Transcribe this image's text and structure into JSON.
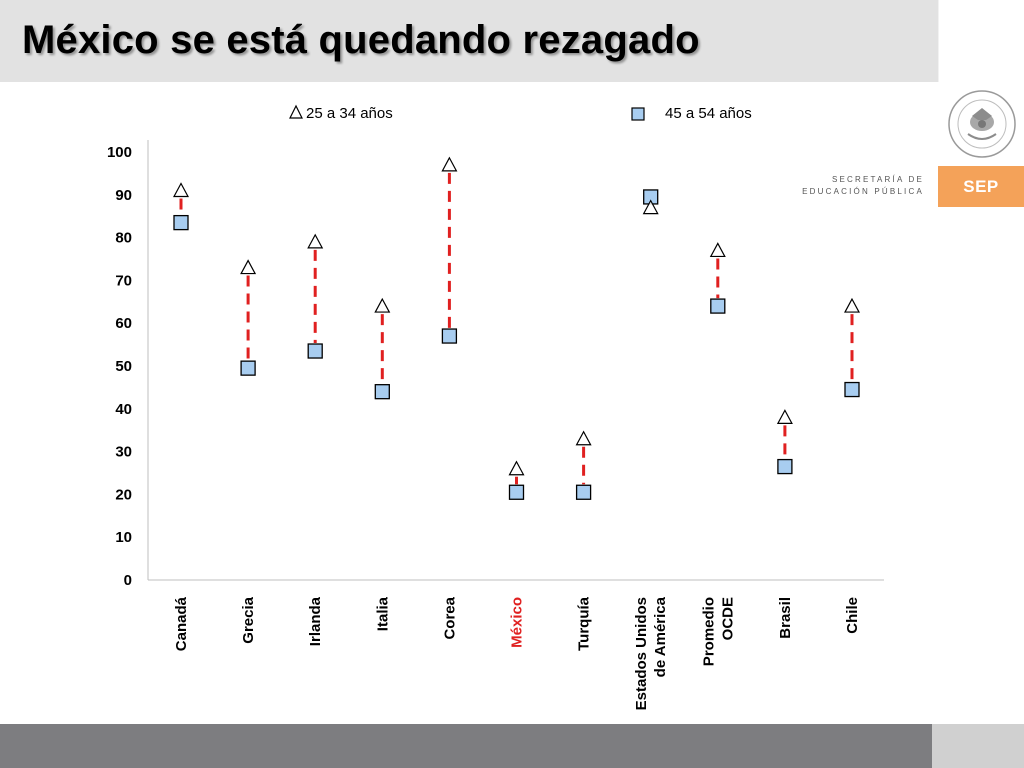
{
  "page": {
    "title": "México se está quedando rezagado",
    "logo_text_line1": "SECRETARÍA DE",
    "logo_text_line2": "EDUCACIÓN PÚBLICA",
    "logo_badge": "SEP",
    "seal_text": "ESTADOS UNIDOS MEXICANOS"
  },
  "colors": {
    "marker_fill": "#a8cdf0",
    "dash_line": "#e02020",
    "highlight_label": "#e02020",
    "axis": "#bfbfbf"
  },
  "chart_data": {
    "type": "scatter",
    "title": "",
    "xlabel": "",
    "ylabel": "",
    "ylim": [
      0,
      100
    ],
    "yticks": [
      0,
      10,
      20,
      30,
      40,
      50,
      60,
      70,
      80,
      90,
      100
    ],
    "legend_position": "top",
    "categories": [
      [
        "Canadá"
      ],
      [
        "Grecia"
      ],
      [
        "Irlanda"
      ],
      [
        "Italia"
      ],
      [
        "Corea"
      ],
      [
        "México"
      ],
      [
        "Turquía"
      ],
      [
        "Estados Unidos",
        "de América"
      ],
      [
        "Promedio",
        "OCDE"
      ],
      [
        "Brasil"
      ],
      [
        "Chile"
      ]
    ],
    "highlight_category": "México",
    "series": [
      {
        "name": "25 a 34 años",
        "marker": "triangle",
        "values": [
          91,
          73,
          79,
          64,
          97,
          26,
          33,
          87,
          77,
          38,
          64
        ]
      },
      {
        "name": "45 a 54 años",
        "marker": "square",
        "values": [
          83.5,
          49.5,
          53.5,
          44,
          57,
          20.5,
          20.5,
          89.5,
          64,
          26.5,
          44.5
        ]
      }
    ]
  }
}
